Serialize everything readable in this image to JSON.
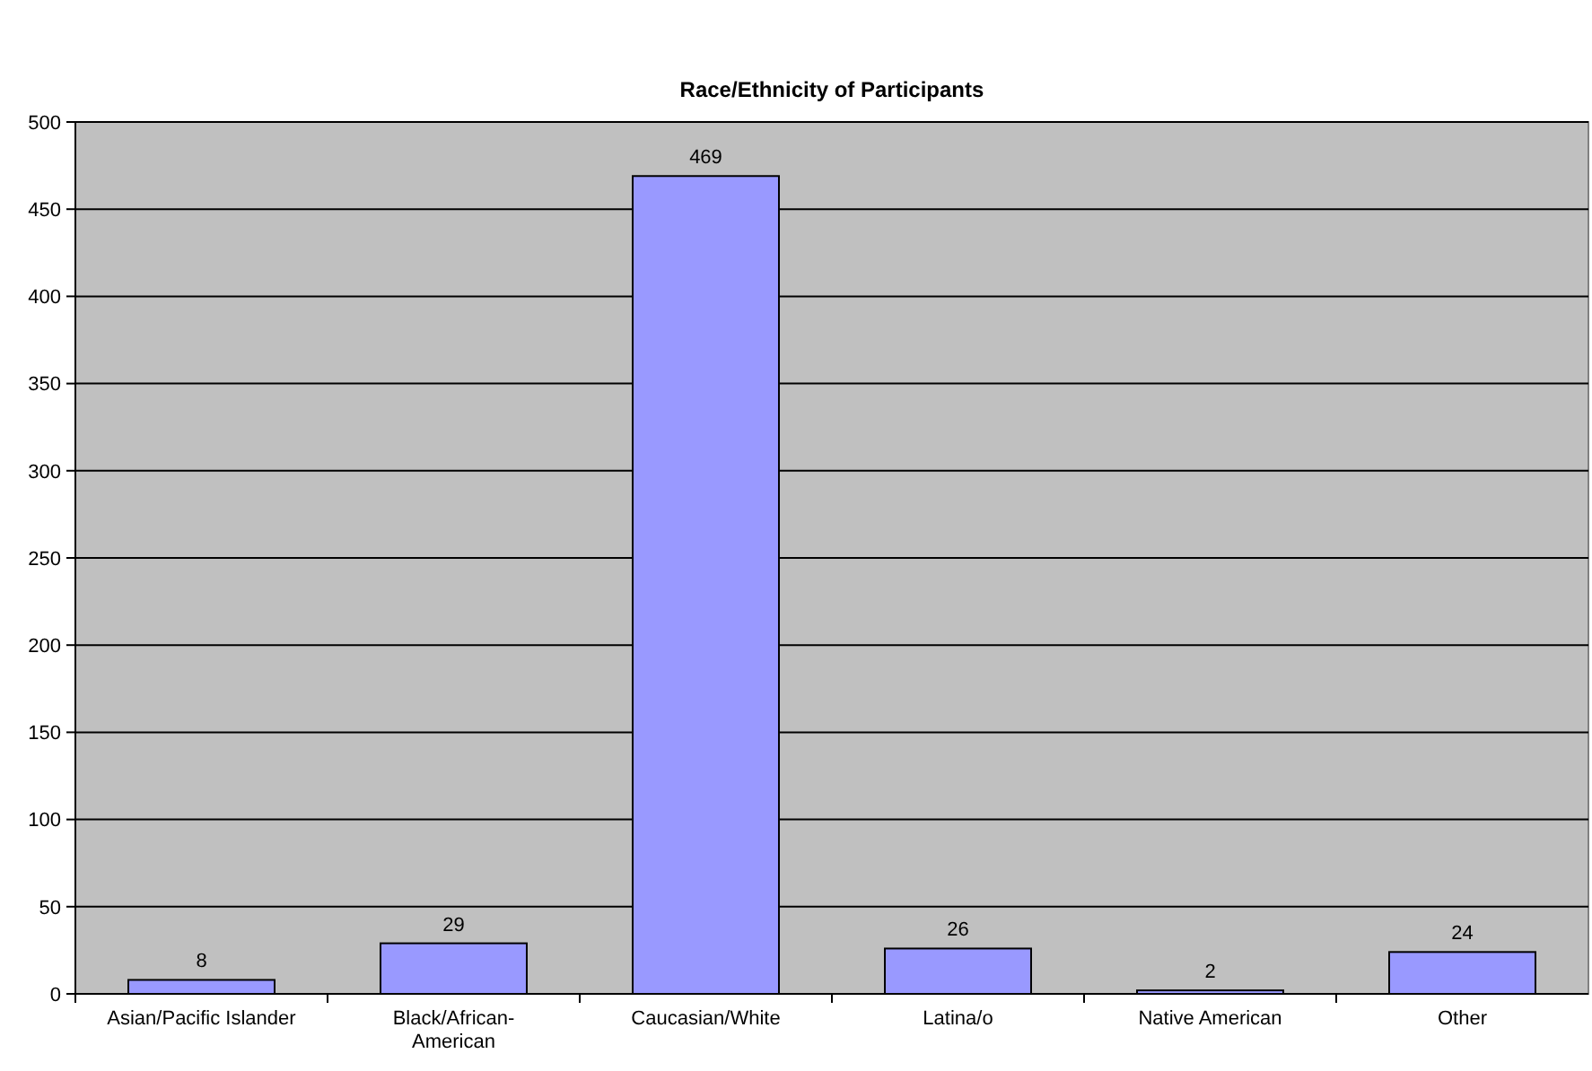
{
  "chart_data": {
    "type": "bar",
    "title": "Race/Ethnicity of Participants",
    "categories": [
      "Asian/Pacific Islander",
      "Black/African-American",
      "Caucasian/White",
      "Latina/o",
      "Native American",
      "Other"
    ],
    "values": [
      8,
      29,
      469,
      26,
      2,
      24
    ],
    "color": "#9999ff",
    "ylim": [
      0,
      500
    ],
    "yticks": [
      0,
      50,
      100,
      150,
      200,
      250,
      300,
      350,
      400,
      450,
      500
    ],
    "grid": "y",
    "data_labels": true
  }
}
